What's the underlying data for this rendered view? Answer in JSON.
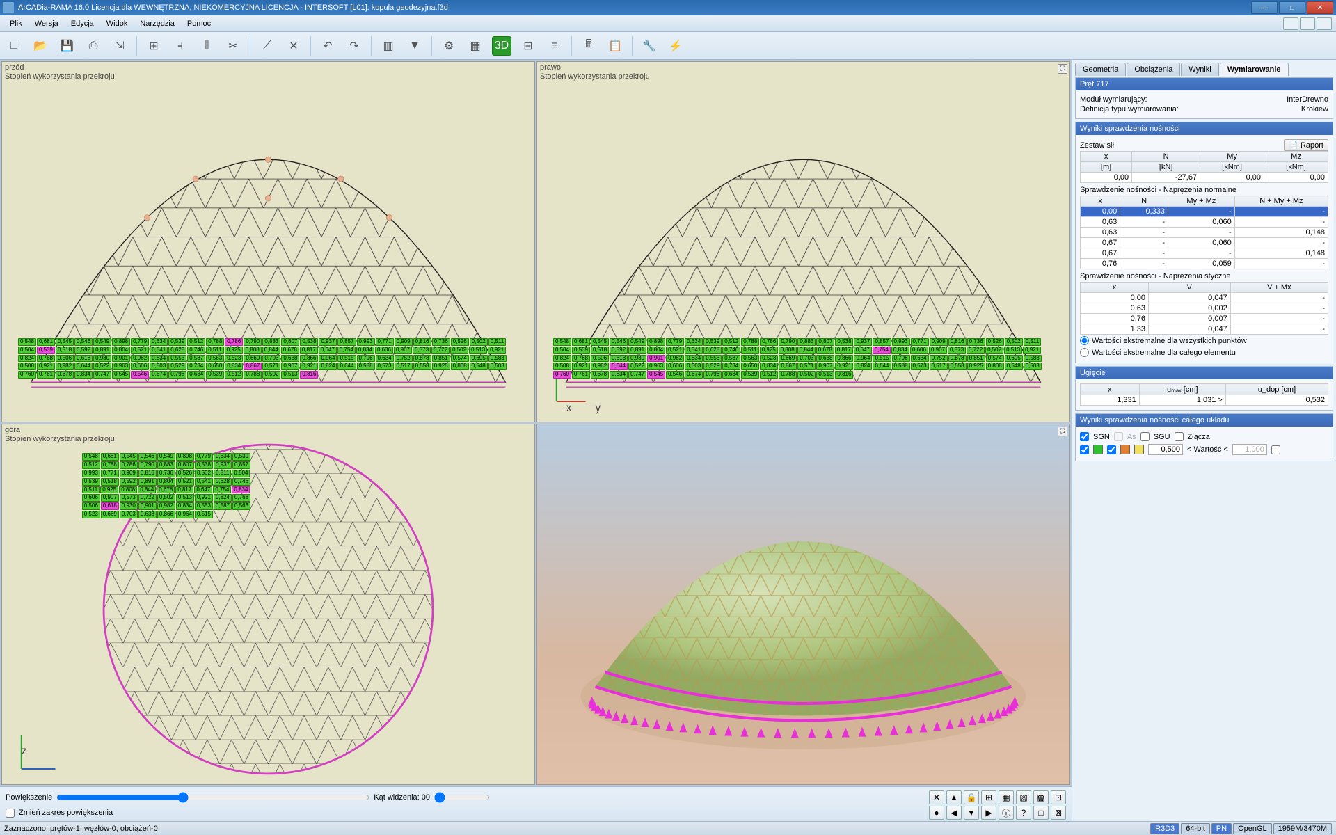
{
  "title": "ArCADia-RAMA 16.0 Licencja dla WEWNĘTRZNA, NIEKOMERCYJNA LICENCJA - INTERSOFT [L01]: kopula geodezyjna.f3d",
  "menu": [
    "Plik",
    "Wersja",
    "Edycja",
    "Widok",
    "Narzędzia",
    "Pomoc"
  ],
  "viewports": {
    "tl": {
      "name": "przód",
      "sub": "Stopień wykorzystania przekroju"
    },
    "tr": {
      "name": "prawo",
      "sub": "Stopień wykorzystania przekroju"
    },
    "bl": {
      "name": "góra",
      "sub": "Stopień wykorzystania przekroju"
    },
    "br": {
      "name": "",
      "sub": ""
    }
  },
  "bottom": {
    "zoom": "Powiększenie",
    "angle": "Kąt widzenia: 00",
    "checkbox": "Zmień zakres powiększenia"
  },
  "tabs": [
    "Geometria",
    "Obciążenia",
    "Wyniki",
    "Wymiarowanie"
  ],
  "activeTab": 3,
  "section1": {
    "title": "Pręt 717",
    "modLabel": "Moduł wymiarujący:",
    "modVal": "InterDrewno",
    "defLabel": "Definicja typu wymiarowania:",
    "defVal": "Krokiew"
  },
  "section2": {
    "title": "Wyniki sprawdzenia nośności",
    "zestaw": "Zestaw sił",
    "raport": "Raport",
    "forceHdr": [
      "x",
      "N",
      "My",
      "Mz"
    ],
    "forceUnit": [
      "[m]",
      "[kN]",
      "[kNm]",
      "[kNm]"
    ],
    "forceRow": [
      "0,00",
      "-27,67",
      "0,00",
      "0,00"
    ],
    "normTitle": "Sprawdzenie nośności - Naprężenia normalne",
    "normHdr": [
      "x",
      "N",
      "My + Mz",
      "N + My + Mz"
    ],
    "normRows": [
      [
        "0,00",
        "0,333",
        "-",
        "-"
      ],
      [
        "0,63",
        "-",
        "0,060",
        "-"
      ],
      [
        "0,63",
        "-",
        "-",
        "0,148"
      ],
      [
        "0,67",
        "-",
        "0,060",
        "-"
      ],
      [
        "0,67",
        "-",
        "-",
        "0,148"
      ],
      [
        "0,76",
        "-",
        "0,059",
        "-"
      ]
    ],
    "shearTitle": "Sprawdzenie nośności - Naprężenia styczne",
    "shearHdr": [
      "x",
      "V",
      "V + Mx"
    ],
    "shearRows": [
      [
        "0,00",
        "0,047",
        "-"
      ],
      [
        "0,63",
        "0,002",
        "-"
      ],
      [
        "0,76",
        "0,007",
        "-"
      ],
      [
        "1,33",
        "0,047",
        "-"
      ]
    ],
    "radio1": "Wartości ekstremalne dla wszystkich punktów",
    "radio2": "Wartości ekstremalne dla całego elementu"
  },
  "section3": {
    "title": "Ugięcie",
    "hdr": [
      "x",
      "uₘₐₓ [cm]",
      "u_dop [cm]"
    ],
    "row": [
      "1,331",
      "1,031 >",
      "0,532"
    ]
  },
  "section4": {
    "title": "Wyniki sprawdzenia nośności całego układu",
    "checks": [
      "SGN",
      "As",
      "SGU",
      "Złącza"
    ],
    "wart": "< Wartość <",
    "v1": "0,500",
    "v2": "1,000"
  },
  "status": {
    "left": "Zaznaczono: prętów-1; węzłów-0; obciążeń-0",
    "pills": [
      "R3D3",
      "64-bit",
      "PN",
      "OpenGL",
      "1959M/3470M"
    ]
  },
  "sampleValues": [
    "0,548",
    "0,681",
    "0,545",
    "0,546",
    "0,549",
    "0,898",
    "0,779",
    "0,634",
    "0,539",
    "0,512",
    "0,788",
    "0,786",
    "0,790",
    "0,883",
    "0,807",
    "0,538",
    "0,937",
    "0,857",
    "0,993",
    "0,771",
    "0,909",
    "0,816",
    "0,736",
    "0,526",
    "0,502",
    "0,511",
    "0,504",
    "0,539",
    "0,518",
    "0,592",
    "0,891",
    "0,804",
    "0,521",
    "0,541",
    "0,628",
    "0,746",
    "0,511",
    "0,925",
    "0,808",
    "0,844",
    "0,678",
    "0,817",
    "0,647",
    "0,754",
    "0,834",
    "0,606",
    "0,907",
    "0,573",
    "0,722",
    "0,502",
    "0,513",
    "0,921",
    "0,824",
    "0,768",
    "0,506",
    "0,618",
    "0,930",
    "0,901",
    "0,982",
    "0,834",
    "0,553",
    "0,587",
    "0,563",
    "0,523",
    "0,669",
    "0,703",
    "0,638",
    "0,866",
    "0,964",
    "0,515",
    "0,796",
    "0,634",
    "0,752",
    "0,878",
    "0,851",
    "0,574",
    "0,695",
    "0,583",
    "0,508",
    "0,921",
    "0,982",
    "0,644",
    "0,522",
    "0,963",
    "0,606",
    "0,503",
    "0,529",
    "0,734",
    "0,650",
    "0,834",
    "0,867",
    "0,571",
    "0,907",
    "0,921",
    "0,824",
    "0,644",
    "0,588",
    "0,573",
    "0,517",
    "0,558",
    "0,925",
    "0,808",
    "0,548",
    "0,503",
    "0,760",
    "0,761",
    "0,678",
    "0,834",
    "0,747",
    "0,545",
    "0,546",
    "0,674",
    "0,796",
    "0,634",
    "0,539",
    "0,512",
    "0,788",
    "0,502",
    "0,513",
    "0,816"
  ]
}
